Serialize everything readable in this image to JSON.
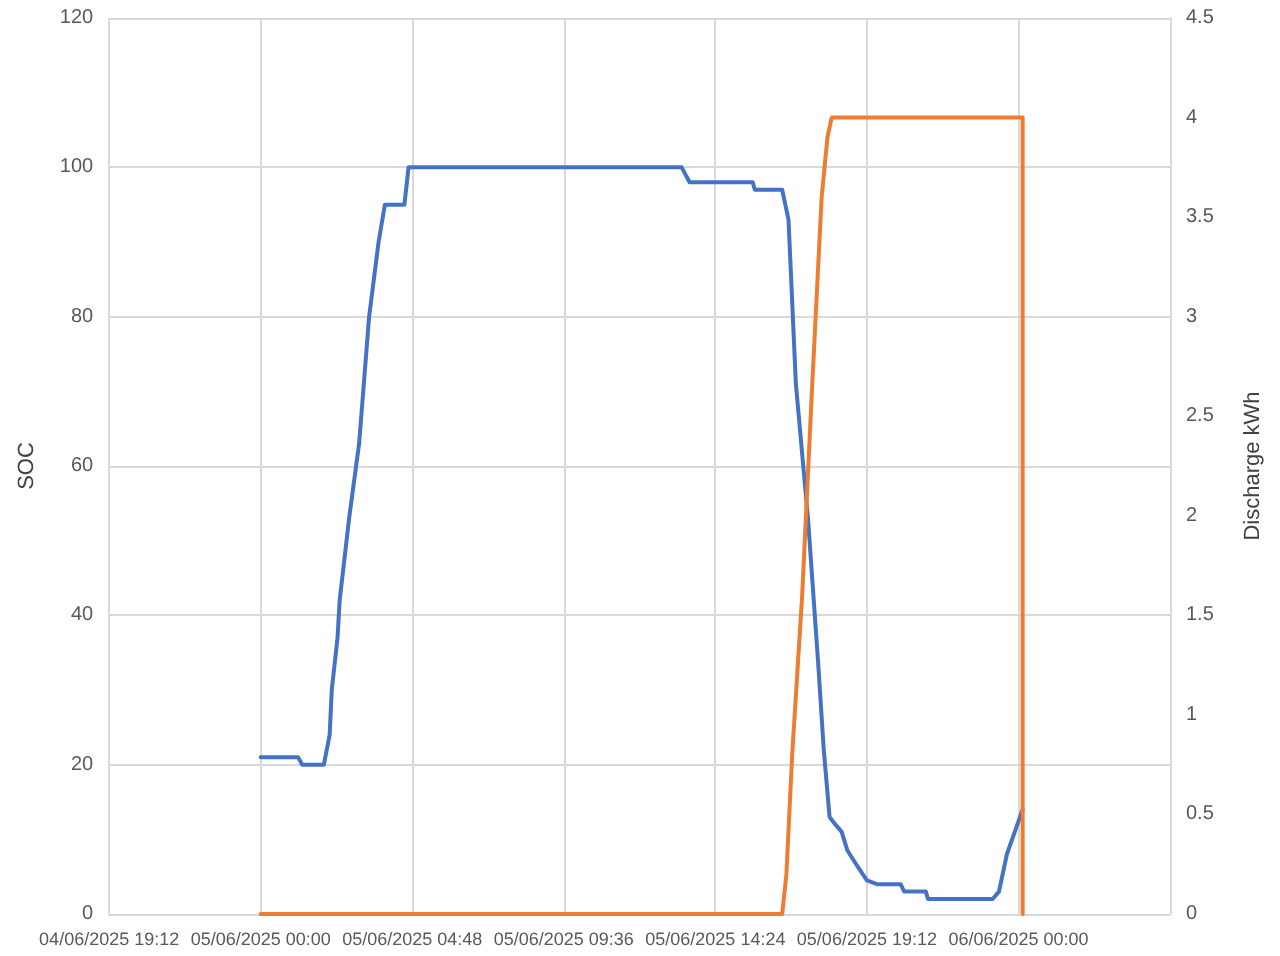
{
  "chart_data": {
    "type": "line",
    "ylabel": "SOC",
    "y2label": "Discharge kWh",
    "xlim": [
      "2025-06-04T19:12",
      "2025-06-06T04:48"
    ],
    "xticks": [
      {
        "value": "2025-06-04T19:12",
        "label": "04/06/2025 19:12"
      },
      {
        "value": "2025-06-05T00:00",
        "label": "05/06/2025 00:00"
      },
      {
        "value": "2025-06-05T04:48",
        "label": "05/06/2025 04:48"
      },
      {
        "value": "2025-06-05T09:36",
        "label": "05/06/2025 09:36"
      },
      {
        "value": "2025-06-05T14:24",
        "label": "05/06/2025 14:24"
      },
      {
        "value": "2025-06-05T19:12",
        "label": "05/06/2025 19:12"
      },
      {
        "value": "2025-06-06T00:00",
        "label": "06/06/2025 00:00"
      }
    ],
    "ylim": [
      0,
      120
    ],
    "yticks": [
      0,
      20,
      40,
      60,
      80,
      100,
      120
    ],
    "y2lim": [
      0,
      4.5
    ],
    "y2ticks": [
      0,
      0.5,
      1,
      1.5,
      2,
      2.5,
      3,
      3.5,
      4,
      4.5
    ],
    "grid": true,
    "marker": "none",
    "line_style": "solid",
    "series": [
      {
        "color": "#4472c4",
        "x": [
          "2025-06-05T00:00",
          "2025-06-05T01:11",
          "2025-06-05T01:19",
          "2025-06-05T02:00",
          "2025-06-05T02:11",
          "2025-06-05T02:15",
          "2025-06-05T02:26",
          "2025-06-05T02:30",
          "2025-06-05T02:48",
          "2025-06-05T03:07",
          "2025-06-05T03:26",
          "2025-06-05T03:44",
          "2025-06-05T03:56",
          "2025-06-05T04:33",
          "2025-06-05T04:41",
          "2025-06-05T13:20",
          "2025-06-05T13:35",
          "2025-06-05T15:35",
          "2025-06-05T15:39",
          "2025-06-05T16:31",
          "2025-06-05T16:43",
          "2025-06-05T16:57",
          "2025-06-05T17:20",
          "2025-06-05T17:39",
          "2025-06-05T17:50",
          "2025-06-05T18:01",
          "2025-06-05T18:12",
          "2025-06-05T18:24",
          "2025-06-05T18:35",
          "2025-06-05T18:53",
          "2025-06-05T19:12",
          "2025-06-05T19:31",
          "2025-06-05T20:16",
          "2025-06-05T20:23",
          "2025-06-05T21:04",
          "2025-06-05T21:08",
          "2025-06-05T23:11",
          "2025-06-05T23:23",
          "2025-06-05T23:38",
          "2025-06-05T23:53",
          "2025-06-06T00:08"
        ],
        "values": [
          21,
          21,
          20,
          20,
          24,
          30,
          37,
          42,
          53,
          63,
          80,
          90,
          95,
          95,
          100,
          100,
          98,
          98,
          97,
          97,
          93,
          71,
          53,
          34,
          22,
          13,
          12,
          11,
          8.5,
          6.5,
          4.5,
          4,
          4,
          3,
          3,
          2,
          2,
          3,
          8,
          11,
          14
        ]
      },
      {
        "color": "#ed7d31",
        "axis": "y2",
        "x": [
          "2025-06-05T00:00",
          "2025-06-05T16:31",
          "2025-06-05T16:39",
          "2025-06-05T16:50",
          "2025-06-05T17:09",
          "2025-06-05T17:27",
          "2025-06-05T17:46",
          "2025-06-05T17:57",
          "2025-06-05T18:05",
          "2025-06-06T00:08",
          "2025-06-06T00:08"
        ],
        "values": [
          0,
          0,
          0.2,
          0.8,
          1.6,
          2.6,
          3.6,
          3.9,
          4,
          4,
          0
        ]
      }
    ]
  }
}
